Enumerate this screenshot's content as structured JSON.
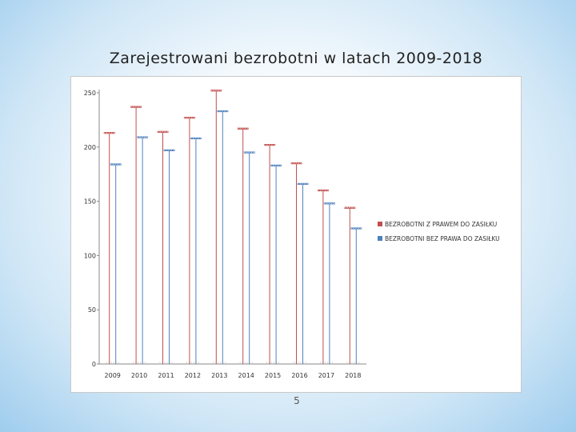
{
  "slide": {
    "title": "Zarejestrowani bezrobotni w latach 2009-2018",
    "page_number": "5"
  },
  "chart_data": {
    "type": "line",
    "title": "Zarejestrowani bezrobotni w latach 2009-2018",
    "xlabel": "",
    "ylabel": "",
    "categories": [
      "2009",
      "2010",
      "2011",
      "2012",
      "2013",
      "2014",
      "2015",
      "2016",
      "2017",
      "2018"
    ],
    "y_ticks": [
      "0",
      "50",
      "100",
      "150",
      "200",
      "250"
    ],
    "ylim": [
      0,
      250
    ],
    "grid": false,
    "legend_position": "right",
    "series": [
      {
        "name": "BEZROBOTNI Z PRAWEM DO ZASIŁKU",
        "color": "#c0504d",
        "values": [
          213,
          237,
          214,
          227,
          252,
          217,
          202,
          185,
          160,
          144
        ]
      },
      {
        "name": "BEZROBOTNI BEZ PRAWA DO ZASIŁKU",
        "color": "#4f81bd",
        "values": [
          184,
          209,
          197,
          208,
          233,
          195,
          183,
          166,
          148,
          125
        ]
      }
    ]
  }
}
